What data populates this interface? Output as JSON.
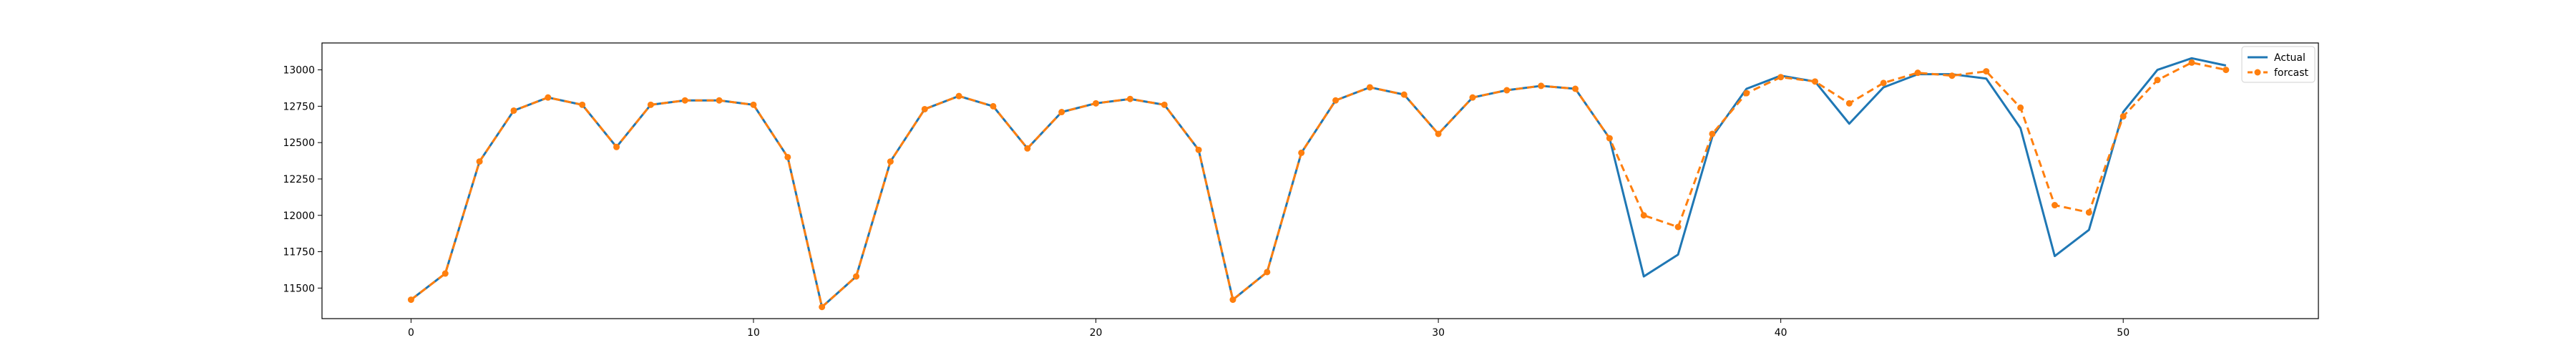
{
  "chart_data": {
    "type": "line",
    "title": "",
    "xlabel": "",
    "ylabel": "",
    "xlim": [
      -2.6,
      55.7
    ],
    "ylim": [
      11290,
      13185
    ],
    "xticks": [
      0,
      10,
      20,
      30,
      40,
      50
    ],
    "yticks": [
      11500,
      11750,
      12000,
      12250,
      12500,
      12750,
      13000
    ],
    "grid": false,
    "legend": "top-right",
    "x": [
      0,
      1,
      2,
      3,
      4,
      5,
      6,
      7,
      8,
      9,
      10,
      11,
      12,
      13,
      14,
      15,
      16,
      17,
      18,
      19,
      20,
      21,
      22,
      23,
      24,
      25,
      26,
      27,
      28,
      29,
      30,
      31,
      32,
      33,
      34,
      35,
      36,
      37,
      38,
      39,
      40,
      41,
      42,
      43,
      44,
      45,
      46,
      47,
      48,
      49,
      50,
      51,
      52,
      53
    ],
    "series": [
      {
        "name": "Actual",
        "color": "#1f77b4",
        "style": "solid",
        "marker": "none",
        "values": [
          11420,
          11600,
          12370,
          12720,
          12810,
          12760,
          12470,
          12760,
          12790,
          12790,
          12760,
          12400,
          11370,
          11580,
          12370,
          12730,
          12820,
          12750,
          12460,
          12710,
          12770,
          12800,
          12760,
          12450,
          11420,
          11610,
          12430,
          12790,
          12880,
          12830,
          12560,
          12810,
          12860,
          12890,
          12870,
          12530,
          11580,
          11730,
          12540,
          12870,
          12960,
          12920,
          12630,
          12880,
          12970,
          12970,
          12940,
          12600,
          11720,
          11900,
          12710,
          13000,
          13080,
          13030
        ]
      },
      {
        "name": "forcast",
        "color": "#ff7f0e",
        "style": "dashed",
        "marker": "circle",
        "values": [
          11420,
          11600,
          12370,
          12720,
          12810,
          12760,
          12470,
          12760,
          12790,
          12790,
          12760,
          12400,
          11370,
          11580,
          12370,
          12730,
          12820,
          12750,
          12460,
          12710,
          12770,
          12800,
          12760,
          12450,
          11420,
          11610,
          12430,
          12790,
          12880,
          12830,
          12560,
          12810,
          12860,
          12890,
          12870,
          12530,
          12000,
          11920,
          12560,
          12840,
          12950,
          12920,
          12770,
          12910,
          12980,
          12960,
          12990,
          12740,
          12070,
          12020,
          12680,
          12930,
          13050,
          13000
        ]
      }
    ]
  }
}
